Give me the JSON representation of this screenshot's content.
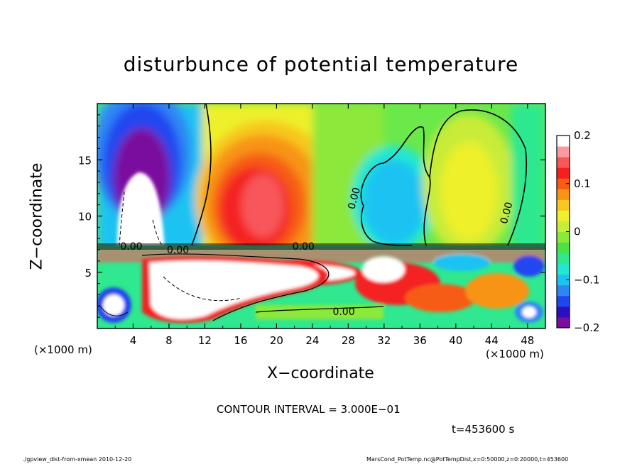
{
  "chart_data": {
    "type": "heatmap",
    "title": "disturbunce of potential temperature",
    "xlabel": "X−coordinate",
    "ylabel": "Z−coordinate",
    "x_unit_label": "(×1000 m)",
    "z_unit_label": "(×1000 m)",
    "xlim": [
      0,
      50
    ],
    "ylim": [
      0,
      20
    ],
    "x_ticks": [
      4,
      8,
      12,
      16,
      20,
      24,
      28,
      32,
      36,
      40,
      44,
      48
    ],
    "y_ticks": [
      5,
      10,
      15
    ],
    "colorbar": {
      "min": -0.2,
      "max": 0.2,
      "ticks": [
        0.2,
        0.1,
        0,
        -0.1,
        -0.2
      ],
      "tick_labels": [
        "0.2",
        "0.1",
        "0",
        "−0.1",
        "−0.2"
      ],
      "colors": [
        "#7a0d9e",
        "#2a10c0",
        "#2046f0",
        "#2e86f5",
        "#1cc3f2",
        "#22e8d2",
        "#2fe88f",
        "#4ae24a",
        "#8ce83a",
        "#c8ec38",
        "#eef02c",
        "#f7c81f",
        "#f79414",
        "#f75c12",
        "#f42020",
        "#f8575a",
        "#f99aa0",
        "#ffffff"
      ]
    },
    "contour_labels": [
      "0.00",
      "0.00",
      "0.00",
      "0.00",
      "0.00",
      "0.00"
    ],
    "contour_interval": 0.3,
    "time_s": 453600
  },
  "texts": {
    "contour_interval": "CONTOUR INTERVAL = 3.000E−01",
    "time": "t=453600 s",
    "footer_left": "./gpview_dist-from-xmean  2010-12-20",
    "footer_right": "MarsCond_PotTemp.nc@PotTempDist,x=0:50000,z=0:20000,t=453600"
  },
  "colors": {
    "background": "#ffffff",
    "axis": "#000000"
  }
}
